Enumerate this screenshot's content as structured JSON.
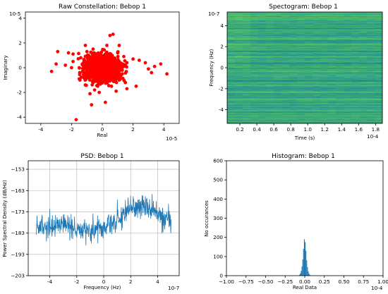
{
  "colors": {
    "scatter": "#ff0000",
    "psd_line": "#1f77b4",
    "hist_bars": "#1f77b4",
    "colormap": [
      "#3b528b",
      "#21918c",
      "#5ec962",
      "#fde725"
    ]
  },
  "chart_data": [
    {
      "type": "scatter",
      "title": "Raw Constellation: Bebop 1",
      "xlabel": "Real",
      "ylabel": "Imaginary",
      "x_offset_label": "10-5",
      "y_offset_label": "10-5",
      "xlim": [
        -5,
        5
      ],
      "ylim": [
        -4.5,
        4.5
      ],
      "xticks": [
        -4,
        -2,
        0,
        2,
        4
      ],
      "yticks": [
        4,
        2,
        0,
        -2,
        -4
      ],
      "grid": false,
      "points": [
        [
          -3.3,
          -0.3
        ],
        [
          -2.0,
          0.0
        ],
        [
          -1.9,
          0.5
        ],
        [
          -1.2,
          -0.8
        ],
        [
          -1.0,
          -0.2
        ],
        [
          -1.1,
          -1.4
        ],
        [
          -0.8,
          -2.1
        ],
        [
          -0.5,
          -1.8
        ],
        [
          -0.7,
          -3.0
        ],
        [
          -1.7,
          -4.2
        ],
        [
          -1.5,
          -0.9
        ],
        [
          -0.6,
          1.5
        ],
        [
          -1.9,
          1.1
        ],
        [
          -1.4,
          0.8
        ],
        [
          -1.3,
          0.3
        ],
        [
          -3.0,
          0.3
        ],
        [
          -2.4,
          0.2
        ],
        [
          -1.2,
          -0.4
        ],
        [
          -1.0,
          1.3
        ],
        [
          -2.2,
          1.2
        ],
        [
          -2.9,
          1.3
        ],
        [
          -1.1,
          1.8
        ],
        [
          -0.4,
          1.1
        ],
        [
          0.3,
          1.8
        ],
        [
          0.5,
          2.6
        ],
        [
          0.7,
          2.7
        ],
        [
          1.1,
          1.8
        ],
        [
          1.0,
          1.2
        ],
        [
          1.4,
          0.9
        ],
        [
          1.6,
          0.4
        ],
        [
          1.3,
          -0.5
        ],
        [
          1.1,
          -1.0
        ],
        [
          1.5,
          -1.2
        ],
        [
          0.9,
          -1.9
        ],
        [
          1.6,
          -1.7
        ],
        [
          2.2,
          -1.5
        ],
        [
          2.4,
          0.6
        ],
        [
          2.0,
          0.7
        ],
        [
          3.2,
          -0.4
        ],
        [
          2.8,
          0.4
        ],
        [
          3.0,
          -0.1
        ],
        [
          3.4,
          0.1
        ],
        [
          4.2,
          -0.5
        ],
        [
          3.8,
          0.3
        ],
        [
          -1.5,
          0.0
        ],
        [
          -0.2,
          -2.0
        ],
        [
          0.2,
          -2.8
        ],
        [
          -0.3,
          -1.5
        ],
        [
          1.1,
          0.5
        ],
        [
          1.3,
          -0.2
        ],
        [
          0.8,
          -1.1
        ],
        [
          -0.6,
          -1.2
        ],
        [
          -1.0,
          -0.7
        ],
        [
          -0.8,
          0.7
        ],
        [
          0.6,
          -1.5
        ]
      ],
      "core": {
        "n": 1400,
        "sx": 0.55,
        "sy": 0.5
      }
    },
    {
      "type": "heatmap",
      "title": "Spectogram: Bebop 1",
      "xlabel": "Time (s)",
      "ylabel": "Frequency (Hz)",
      "x_offset_label": "10-4",
      "y_offset_label": "10-7",
      "xlim": [
        0.05,
        1.88
      ],
      "ylim": [
        -5.3,
        5.3
      ],
      "xticks": [
        "0.2",
        "0.4",
        "0.6",
        "0.8",
        "1.0",
        "1.2",
        "1.4",
        "1.6",
        "1.8"
      ],
      "yticks": [
        4,
        2,
        0,
        -2,
        -4
      ],
      "grid": false,
      "rows": 180,
      "cols": 20
    },
    {
      "type": "line",
      "title": "PSD: Bebop 1",
      "xlabel": "Frequency (Hz)",
      "ylabel": "Power Spectral Density (dB/Hz)",
      "x_offset_label": "10-7",
      "xlim": [
        -5.6,
        5.6
      ],
      "ylim": [
        -203,
        -149
      ],
      "xticks": [
        -4,
        -2,
        0,
        2,
        4
      ],
      "yticks": [
        -153,
        -163,
        -173,
        -183,
        -193,
        -203
      ],
      "grid": true,
      "line_range": [
        -5,
        5
      ],
      "n_points": 520,
      "profile": [
        [
          -5.0,
          -180
        ],
        [
          -4.0,
          -180
        ],
        [
          -3.0,
          -179
        ],
        [
          -2.0,
          -181
        ],
        [
          -1.0,
          -181
        ],
        [
          0.0,
          -181
        ],
        [
          0.6,
          -178
        ],
        [
          1.3,
          -175
        ],
        [
          2.0,
          -172
        ],
        [
          3.0,
          -170
        ],
        [
          3.8,
          -173
        ],
        [
          4.5,
          -176
        ],
        [
          5.0,
          -178
        ]
      ]
    },
    {
      "type": "bar",
      "title": "Histogram: Bebop 1",
      "xlabel": "Real Data",
      "ylabel": "No occurances",
      "x_offset_label": "10-4",
      "xlim": [
        -1.0,
        1.0
      ],
      "ylim": [
        0,
        600
      ],
      "xticks": [
        "−1.00",
        "−0.75",
        "−0.50",
        "−0.25",
        "0.00",
        "0.25",
        "0.50",
        "0.75",
        "1.00"
      ],
      "yticks": [
        600,
        500,
        400,
        300,
        200,
        100,
        0
      ],
      "grid": false,
      "bins": [
        {
          "x": -0.075,
          "count": 2
        },
        {
          "x": -0.065,
          "count": 5
        },
        {
          "x": -0.055,
          "count": 12
        },
        {
          "x": -0.045,
          "count": 25
        },
        {
          "x": -0.035,
          "count": 48
        },
        {
          "x": -0.025,
          "count": 85
        },
        {
          "x": -0.015,
          "count": 140
        },
        {
          "x": -0.005,
          "count": 190
        },
        {
          "x": 0.005,
          "count": 175
        },
        {
          "x": 0.015,
          "count": 130
        },
        {
          "x": 0.025,
          "count": 80
        },
        {
          "x": 0.035,
          "count": 45
        },
        {
          "x": 0.045,
          "count": 22
        },
        {
          "x": 0.055,
          "count": 10
        },
        {
          "x": 0.065,
          "count": 4
        },
        {
          "x": 0.075,
          "count": 2
        }
      ],
      "bin_width": 0.01
    }
  ]
}
